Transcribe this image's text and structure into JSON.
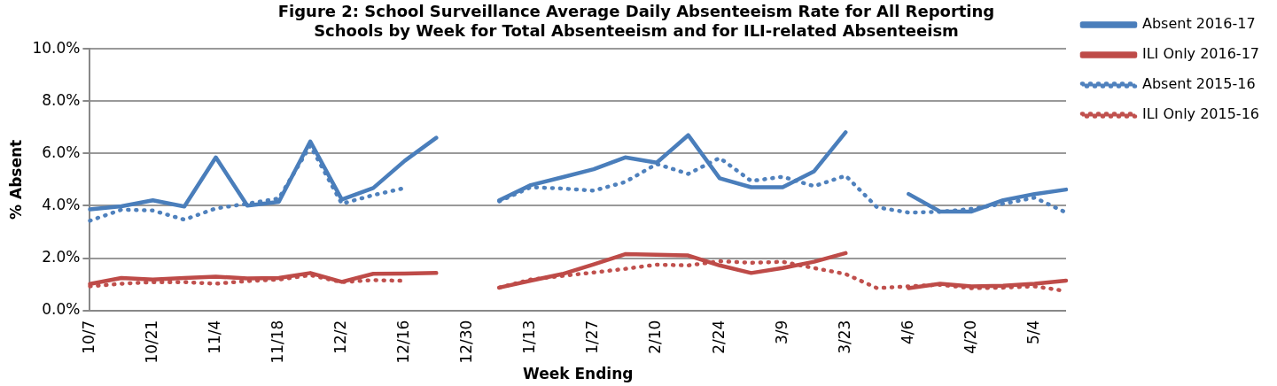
{
  "chart_data": {
    "type": "line",
    "title": "Figure 2: School Surveillance Average Daily Absenteeism Rate for All Reporting Schools by Week for Total Absenteeism and for ILI-related Absenteeism",
    "xlabel": "Week Ending",
    "ylabel": "% Absent",
    "categories": [
      "10/7",
      null,
      "10/21",
      null,
      "11/4",
      null,
      "11/18",
      null,
      "12/2",
      null,
      "12/16",
      null,
      "12/30",
      null,
      "1/13",
      null,
      "1/27",
      null,
      "2/10",
      null,
      "2/24",
      null,
      "3/9",
      null,
      "3/23",
      null,
      "4/6",
      null,
      "4/20",
      null,
      "5/4",
      null
    ],
    "series": [
      {
        "name": "Absent 2016-17",
        "color": "#4a7ebb",
        "line_style": "solid",
        "values": [
          3.86,
          3.98,
          4.21,
          3.97,
          5.85,
          4.01,
          4.15,
          6.46,
          4.24,
          4.68,
          5.72,
          6.6,
          null,
          4.21,
          4.79,
          5.09,
          5.4,
          5.85,
          5.65,
          6.7,
          5.05,
          4.71,
          4.71,
          5.32,
          6.81,
          null,
          4.45,
          3.78,
          3.78,
          4.21,
          4.45,
          4.62
        ]
      },
      {
        "name": "ILI Only 2016-17",
        "color": "#be4b48",
        "line_style": "solid",
        "values": [
          1.01,
          1.24,
          1.18,
          1.24,
          1.29,
          1.22,
          1.24,
          1.43,
          1.09,
          1.4,
          1.41,
          1.43,
          null,
          0.87,
          1.14,
          1.39,
          1.76,
          2.15,
          2.13,
          2.1,
          1.72,
          1.43,
          1.62,
          1.86,
          2.19,
          null,
          0.85,
          1.02,
          0.92,
          0.94,
          1.02,
          1.14
        ]
      },
      {
        "name": "Absent 2015-16",
        "color": "#4f81bd",
        "line_style": "dotted",
        "values": [
          3.43,
          3.85,
          3.82,
          3.47,
          3.9,
          4.08,
          4.28,
          6.3,
          4.08,
          4.41,
          4.68,
          null,
          null,
          4.17,
          4.71,
          4.66,
          4.58,
          4.91,
          5.6,
          5.22,
          5.83,
          4.95,
          5.11,
          4.75,
          5.15,
          3.94,
          3.74,
          3.77,
          3.88,
          4.08,
          4.31,
          3.74
        ]
      },
      {
        "name": "ILI Only 2015-16",
        "color": "#c0504d",
        "line_style": "dotted",
        "values": [
          0.92,
          1.02,
          1.08,
          1.08,
          1.02,
          1.12,
          1.18,
          1.35,
          1.08,
          1.16,
          1.13,
          null,
          null,
          0.87,
          1.18,
          1.32,
          1.45,
          1.59,
          1.75,
          1.72,
          1.88,
          1.82,
          1.86,
          1.62,
          1.39,
          0.85,
          0.92,
          0.98,
          0.85,
          0.87,
          0.92,
          0.74
        ]
      }
    ],
    "ylim": [
      0,
      10
    ],
    "yticks": [
      {
        "value": 0,
        "label": "0.0%"
      },
      {
        "value": 2,
        "label": "2.0%"
      },
      {
        "value": 4,
        "label": "4.0%"
      },
      {
        "value": 6,
        "label": "6.0%"
      },
      {
        "value": 8,
        "label": "8.0%"
      },
      {
        "value": 10,
        "label": "10.0%"
      }
    ],
    "grid": "y",
    "legend": "top right",
    "marker": "none"
  }
}
